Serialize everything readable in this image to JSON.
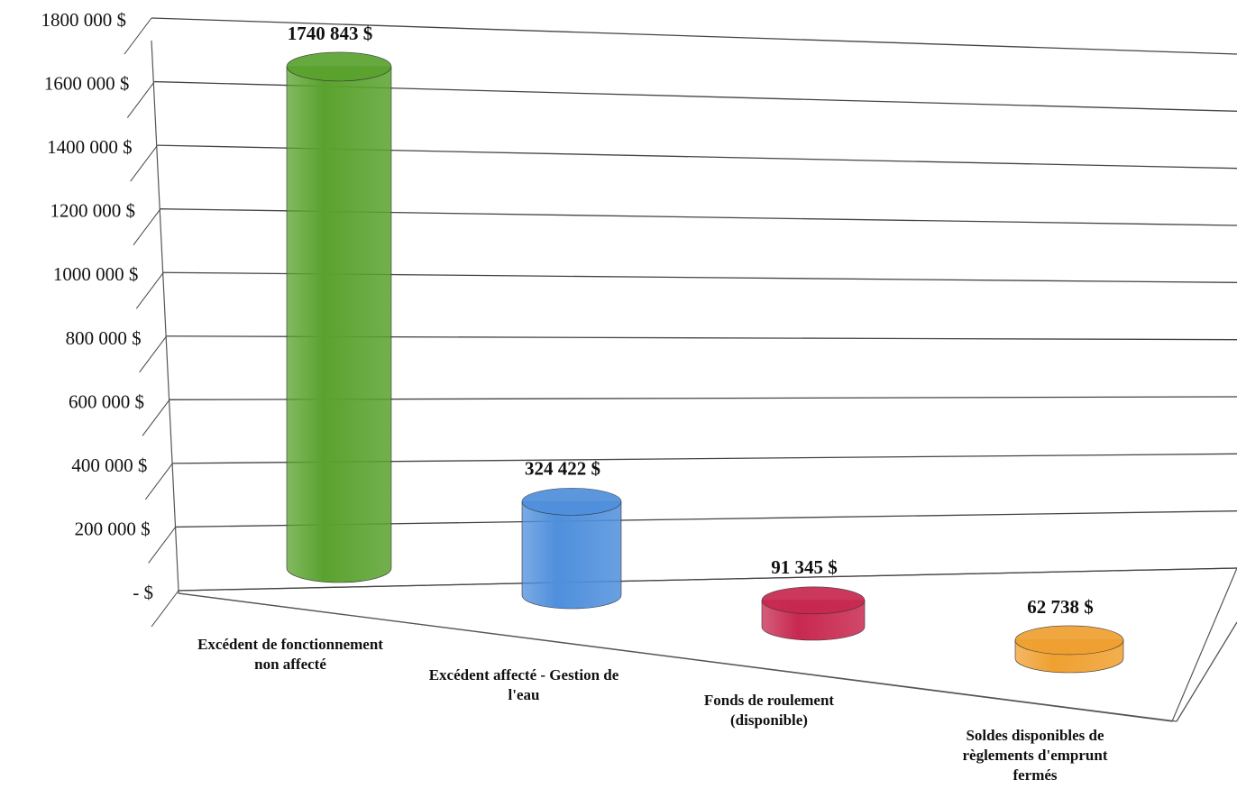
{
  "chart_data": {
    "type": "bar",
    "style": "3d-cylinder",
    "categories": [
      [
        "Excédent de fonctionnement",
        "non affecté"
      ],
      [
        "Excédent affecté - Gestion de",
        "l'eau"
      ],
      [
        "Fonds de roulement",
        "(disponible)"
      ],
      [
        "Soldes disponibles de",
        "règlements d'emprunt",
        "fermés"
      ]
    ],
    "values": [
      1740843,
      324422,
      91345,
      62738
    ],
    "data_labels": [
      "1740 843  $",
      "324 422  $",
      "91 345  $",
      "62 738  $"
    ],
    "colors": [
      "#5aa22e",
      "#4f8fdc",
      "#c8284f",
      "#f0a030"
    ],
    "y_ticks": [
      {
        "value": 0,
        "label": "-    $"
      },
      {
        "value": 200000,
        "label": "200 000  $"
      },
      {
        "value": 400000,
        "label": "400 000  $"
      },
      {
        "value": 600000,
        "label": "600 000  $"
      },
      {
        "value": 800000,
        "label": "800 000  $"
      },
      {
        "value": 1000000,
        "label": "1000 000  $"
      },
      {
        "value": 1200000,
        "label": "1200 000  $"
      },
      {
        "value": 1400000,
        "label": "1400 000  $"
      },
      {
        "value": 1600000,
        "label": "1600 000  $"
      },
      {
        "value": 1800000,
        "label": "1800 000  $"
      }
    ],
    "ylim": [
      0,
      1800000
    ],
    "grid": true,
    "legend": "none"
  }
}
